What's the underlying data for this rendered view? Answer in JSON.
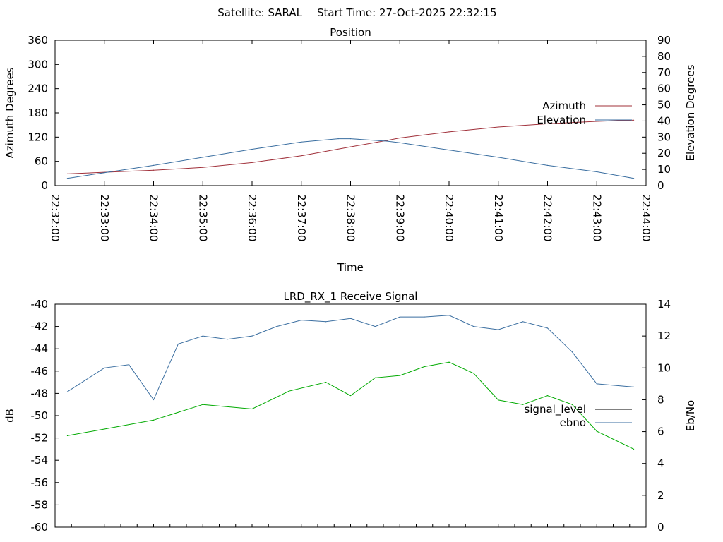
{
  "header": {
    "satellite": "Satellite: SARAL",
    "start_time": "Start Time: 27-Oct-2025 22:32:15"
  },
  "chart_data": [
    {
      "type": "line",
      "title": "Position",
      "xlabel": "Time",
      "ylabel": "Azimuth Degrees",
      "y2label": "Elevation Degrees",
      "xlim": [
        "22:32:00",
        "22:44:00"
      ],
      "ylim": [
        0,
        360
      ],
      "y2lim": [
        0,
        90
      ],
      "x_ticks": [
        "22:32:00",
        "22:33:00",
        "22:34:00",
        "22:35:00",
        "22:36:00",
        "22:37:00",
        "22:38:00",
        "22:39:00",
        "22:40:00",
        "22:41:00",
        "22:42:00",
        "22:43:00",
        "22:44:00"
      ],
      "y_ticks": [
        0,
        60,
        120,
        180,
        240,
        300,
        360
      ],
      "y2_ticks": [
        0,
        10,
        20,
        30,
        40,
        50,
        60,
        70,
        80,
        90
      ],
      "legend_position": "right",
      "grid": false,
      "series": [
        {
          "name": "Azimuth",
          "axis": "y",
          "color": "#a0303a",
          "x": [
            "22:32:15",
            "22:33:00",
            "22:34:00",
            "22:35:00",
            "22:36:00",
            "22:37:00",
            "22:38:00",
            "22:38:45",
            "22:39:00",
            "22:40:00",
            "22:41:00",
            "22:42:00",
            "22:43:00",
            "22:43:45"
          ],
          "y": [
            29,
            33,
            38,
            45,
            57,
            74,
            96,
            112,
            118,
            133,
            145,
            153,
            159,
            162
          ]
        },
        {
          "name": "Elevation",
          "axis": "y2",
          "color": "#3a6ea0",
          "x": [
            "22:32:15",
            "22:33:00",
            "22:34:00",
            "22:35:00",
            "22:36:00",
            "22:37:00",
            "22:37:45",
            "22:38:00",
            "22:38:45",
            "22:39:00",
            "22:40:00",
            "22:41:00",
            "22:42:00",
            "22:43:00",
            "22:43:45"
          ],
          "y": [
            4.5,
            8,
            12.5,
            17.5,
            22.5,
            27,
            29,
            29,
            27.5,
            26.5,
            22,
            17.5,
            12.5,
            8.5,
            4.5
          ]
        }
      ]
    },
    {
      "type": "line",
      "title": "LRD_RX_1 Receive Signal",
      "ylabel": "dB",
      "y2label": "Eb/No",
      "xlim": [
        "22:32:00",
        "22:44:00"
      ],
      "ylim": [
        -60,
        -40
      ],
      "y2lim": [
        0,
        14
      ],
      "y_ticks": [
        -40,
        -42,
        -44,
        -46,
        -48,
        -50,
        -52,
        -54,
        -56,
        -58,
        -60
      ],
      "y2_ticks": [
        0,
        2,
        4,
        6,
        8,
        10,
        12,
        14
      ],
      "legend_position": "right",
      "grid": false,
      "series": [
        {
          "name": "signal_level",
          "axis": "y",
          "color": "#00aa00",
          "x": [
            "22:32:15",
            "22:33:00",
            "22:34:00",
            "22:35:00",
            "22:36:00",
            "22:36:45",
            "22:37:30",
            "22:38:00",
            "22:38:30",
            "22:39:00",
            "22:39:30",
            "22:40:00",
            "22:40:30",
            "22:41:00",
            "22:41:30",
            "22:42:00",
            "22:42:30",
            "22:43:00",
            "22:43:45"
          ],
          "y": [
            -51.8,
            -51.2,
            -50.4,
            -49.0,
            -49.4,
            -47.8,
            -47.0,
            -48.2,
            -46.6,
            -46.4,
            -45.6,
            -45.2,
            -46.2,
            -48.6,
            -49.0,
            -48.2,
            -49.0,
            -51.4,
            -53.0
          ]
        },
        {
          "name": "ebno",
          "axis": "y2",
          "color": "#3a6ea0",
          "x": [
            "22:32:15",
            "22:33:00",
            "22:33:30",
            "22:34:00",
            "22:34:30",
            "22:35:00",
            "22:35:30",
            "22:36:00",
            "22:36:30",
            "22:37:00",
            "22:37:30",
            "22:38:00",
            "22:38:30",
            "22:39:00",
            "22:39:30",
            "22:40:00",
            "22:40:30",
            "22:41:00",
            "22:41:30",
            "22:42:00",
            "22:42:30",
            "22:43:00",
            "22:43:45"
          ],
          "y": [
            8.5,
            10.0,
            10.2,
            8.0,
            11.5,
            12.0,
            11.8,
            12.0,
            12.6,
            13.0,
            12.9,
            13.1,
            12.6,
            13.2,
            13.2,
            13.3,
            12.6,
            12.4,
            12.9,
            12.5,
            11.0,
            9.0,
            8.8
          ]
        }
      ]
    }
  ]
}
